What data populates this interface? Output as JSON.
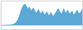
{
  "chart_data": {
    "type": "area",
    "color": "#5ba8d4",
    "values": [
      0.5,
      0.5,
      0.5,
      0.5,
      0.6,
      0.6,
      0.7,
      0.7,
      0.8,
      1.0,
      1.2,
      1.5,
      1.8,
      2.5,
      3.5,
      5.0,
      7.0,
      10.0,
      14.0,
      18.0,
      22.0,
      25.0,
      27.0,
      28.0,
      26.0,
      24.0,
      21.0,
      24.0,
      22.0,
      19.0,
      21.0,
      23.0,
      20.0,
      18.0,
      16.0,
      19.0,
      21.0,
      18.0,
      15.0,
      17.0,
      19.0,
      16.0,
      14.0,
      16.0,
      18.0,
      15.0,
      13.0,
      15.0,
      17.0,
      14.0,
      12.0,
      14.0,
      16.0,
      18.0,
      20.0,
      22.0,
      19.0,
      17.0,
      15.0,
      18.0,
      22.0,
      19.0,
      16.0,
      18.0,
      20.0,
      17.0,
      15.0,
      17.0,
      19.0,
      16.0,
      14.0,
      16.0,
      18.0,
      20.0,
      17.0,
      15.0,
      17.0,
      19.0,
      22.0
    ],
    "xlim": [
      0,
      78
    ],
    "ylim": [
      -5,
      32
    ],
    "tick_labels": false
  }
}
